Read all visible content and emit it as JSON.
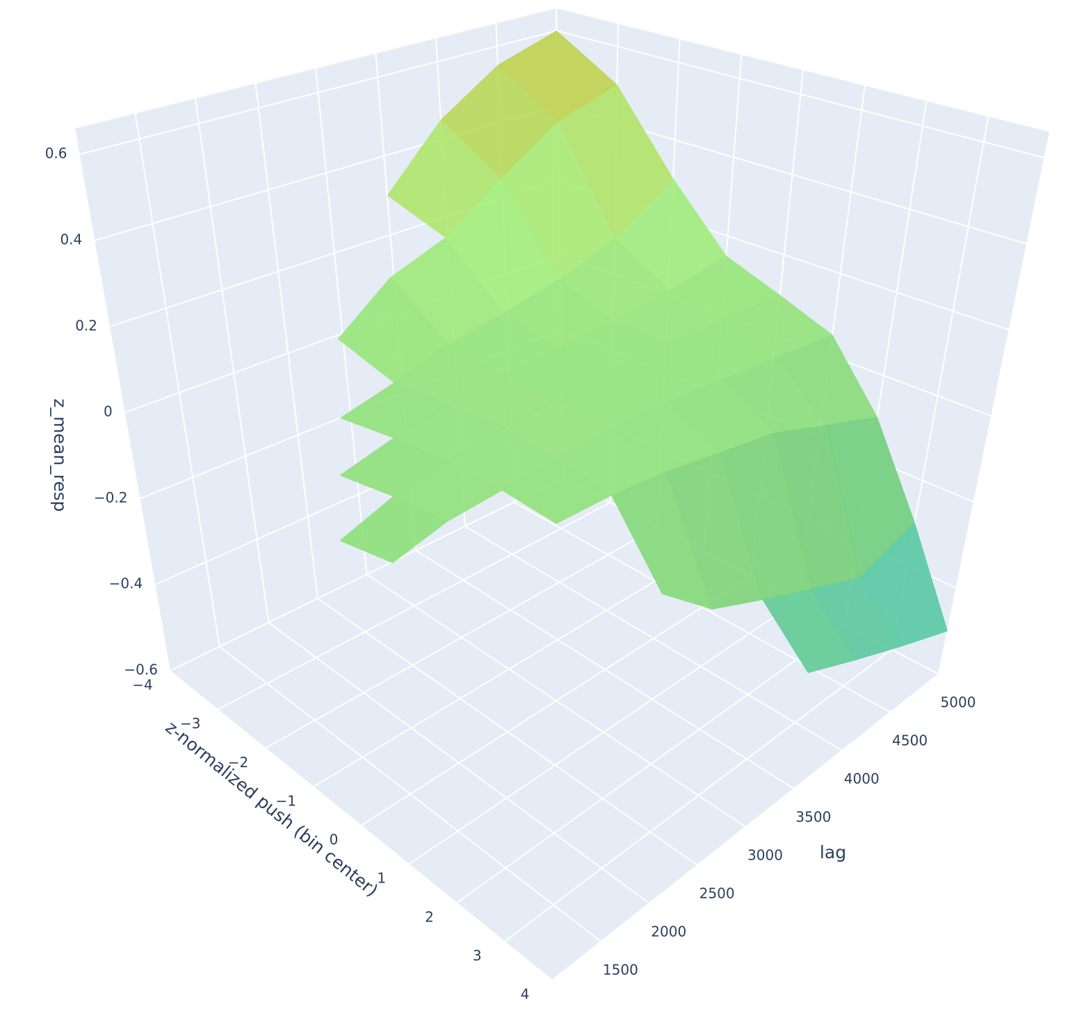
{
  "chart_data": {
    "type": "surface",
    "x_title": "z-normalized push (bin center)",
    "y_title": "lag",
    "z_title": "z_mean_resp",
    "x": [
      -4,
      -3,
      -2,
      -1,
      0,
      1,
      2,
      3,
      4
    ],
    "y": [
      1000,
      1500,
      2000,
      2500,
      3000,
      3500,
      4000,
      4500,
      5000
    ],
    "z": [
      [
        null,
        null,
        null,
        null,
        0.0,
        0.02,
        null,
        null,
        null
      ],
      [
        null,
        null,
        null,
        0.02,
        0.04,
        0.05,
        null,
        null,
        null
      ],
      [
        null,
        null,
        0.03,
        0.05,
        0.06,
        0.06,
        0.05,
        null,
        null
      ],
      [
        null,
        0.1,
        0.06,
        0.07,
        0.08,
        0.07,
        0.05,
        -0.1,
        null
      ],
      [
        null,
        0.2,
        0.1,
        0.08,
        0.09,
        0.08,
        0.04,
        -0.2,
        null
      ],
      [
        0.3,
        0.25,
        0.12,
        0.09,
        0.1,
        0.08,
        0.02,
        -0.25,
        -0.35
      ],
      [
        0.45,
        0.35,
        0.15,
        0.1,
        0.1,
        0.07,
        0.0,
        -0.3,
        -0.4
      ],
      [
        0.55,
        0.45,
        0.2,
        0.12,
        0.1,
        0.06,
        -0.05,
        -0.35,
        -0.45
      ],
      [
        0.6,
        0.5,
        0.3,
        0.15,
        0.1,
        0.05,
        -0.1,
        -0.3,
        -0.5
      ]
    ],
    "xlim": [
      -4,
      4
    ],
    "ylim": [
      1000,
      5000
    ],
    "zlim": [
      -0.6,
      0.66
    ],
    "xticks": [
      {
        "value": -4,
        "label": "−4"
      },
      {
        "value": -3,
        "label": "−3"
      },
      {
        "value": -2,
        "label": "−2"
      },
      {
        "value": -1,
        "label": "−1"
      },
      0,
      1,
      2,
      3,
      4
    ],
    "yticks": [
      1500,
      2000,
      2500,
      3000,
      3500,
      4000,
      4500,
      5000
    ],
    "zticks": [
      {
        "value": -0.6,
        "label": "−0.6"
      },
      {
        "value": -0.4,
        "label": "−0.4"
      },
      {
        "value": -0.2,
        "label": "−0.2"
      },
      0,
      0.2,
      0.4,
      0.6
    ],
    "colorscale": [
      "#3ec3cc",
      "#74cf78",
      "#a6f07c",
      "#cbc23a"
    ],
    "grid": true,
    "wall_color": "#e5ecf6"
  }
}
